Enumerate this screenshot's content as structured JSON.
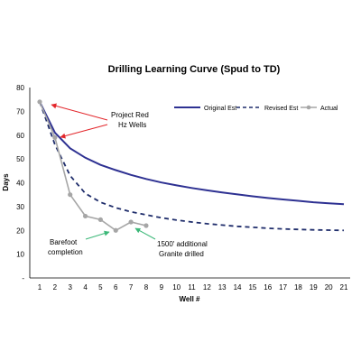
{
  "chart_data": {
    "type": "line",
    "title": "Drilling Learning Curve (Spud to TD)",
    "xlabel": "Well #",
    "ylabel": "Days",
    "x": [
      1,
      2,
      3,
      4,
      5,
      6,
      7,
      8,
      9,
      10,
      11,
      12,
      13,
      14,
      15,
      16,
      17,
      18,
      19,
      20,
      21
    ],
    "xlim": [
      1,
      21
    ],
    "ylim": [
      0,
      80
    ],
    "y_ticks": [
      "-",
      "10",
      "20",
      "30",
      "40",
      "50",
      "60",
      "70",
      "80"
    ],
    "grid": false,
    "legend_position": "top-right",
    "series": [
      {
        "name": "Original Est",
        "style": "solid",
        "color": "#2e3192",
        "x": [
          1,
          2,
          3,
          4,
          5,
          6,
          7,
          8,
          9,
          10,
          11,
          12,
          13,
          14,
          15,
          16,
          17,
          18,
          19,
          20,
          21
        ],
        "values": [
          74,
          61,
          54.5,
          50.5,
          47.5,
          45.3,
          43.3,
          41.6,
          40.1,
          38.9,
          37.8,
          36.8,
          35.9,
          35.1,
          34.3,
          33.6,
          33.0,
          32.4,
          31.8,
          31.4,
          31.0
        ]
      },
      {
        "name": "Revised Est",
        "style": "dashed",
        "color": "#1f2d6b",
        "x": [
          1,
          2,
          3,
          4,
          5,
          6,
          7,
          8,
          9,
          10,
          11,
          12,
          13,
          14,
          15,
          16,
          17,
          18,
          19,
          20,
          21
        ],
        "values": [
          74,
          56,
          43,
          35.5,
          31.8,
          29.5,
          27.8,
          26.5,
          25.3,
          24.3,
          23.5,
          22.8,
          22.2,
          21.7,
          21.3,
          20.9,
          20.6,
          20.4,
          20.2,
          20.1,
          20.0
        ]
      },
      {
        "name": "Actual",
        "style": "markers",
        "color": "#a6a6a6",
        "x": [
          1,
          2,
          3,
          4,
          5,
          6,
          7,
          8
        ],
        "values": [
          74,
          59,
          35,
          26,
          24.5,
          20,
          23.5,
          22
        ]
      }
    ],
    "annotations": [
      {
        "lines": [
          "Project Red",
          "Hz Wells"
        ],
        "arrow_color": "#e3262b",
        "targets": [
          [
            1.2,
            72.5
          ],
          [
            2.1,
            59.5
          ]
        ]
      },
      {
        "lines": [
          "Barefoot",
          "completion"
        ],
        "arrow_color": "#3cb878",
        "targets": [
          [
            5.7,
            19.5
          ]
        ]
      },
      {
        "lines": [
          "1500' additional",
          "Granite drilled"
        ],
        "arrow_color": "#3cb878",
        "targets": [
          [
            7.2,
            22.5
          ]
        ]
      }
    ]
  }
}
